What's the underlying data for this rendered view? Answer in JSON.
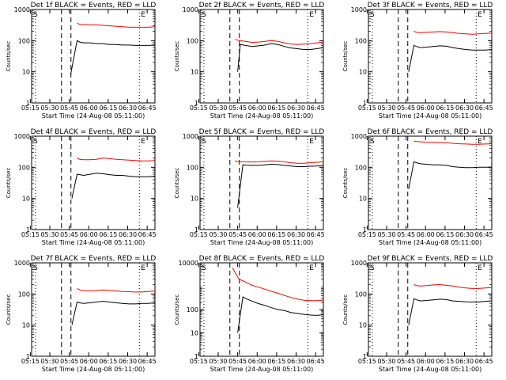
{
  "chart_data": [
    {
      "type": "line",
      "title": "Det 1f BLACK = Events, RED = LLD",
      "xlabel": "Start Time (24-Aug-08 05:11:00)",
      "ylabel": "Counts/sec",
      "xticks": [
        "05:15",
        "05:30",
        "05:45",
        "06:00",
        "06:15",
        "06:30",
        "06:45"
      ],
      "yticks": [
        "1",
        "10",
        "100",
        "1000"
      ],
      "markers": [
        "S",
        "E"
      ],
      "x_range_min": [
        5,
        60
      ],
      "y_range": [
        1,
        1000
      ],
      "series": [
        {
          "color": "#ff0000",
          "x": [
            40,
            42,
            45,
            50,
            55,
            60,
            65,
            70,
            75,
            80,
            85,
            90,
            95,
            100
          ],
          "y": [
            370,
            330,
            330,
            320,
            320,
            310,
            300,
            290,
            280,
            270,
            270,
            270,
            270,
            280
          ]
        },
        {
          "color": "#000000",
          "x": [
            35,
            40,
            42,
            45,
            50,
            55,
            60,
            65,
            70,
            75,
            80,
            85,
            90,
            95,
            100
          ],
          "y": [
            8,
            100,
            90,
            85,
            85,
            80,
            80,
            75,
            75,
            72,
            72,
            70,
            70,
            70,
            72
          ]
        }
      ]
    },
    {
      "type": "line",
      "title": "Det 2f BLACK = Events, RED = LLD",
      "xlabel": "Start Time (24-Aug-08 05:11:00)",
      "ylabel": "Counts/sec",
      "xticks": [
        "05:15",
        "05:30",
        "05:45",
        "06:00",
        "06:15",
        "06:30",
        "06:45"
      ],
      "yticks": [
        "1",
        "10",
        "100",
        "1000"
      ],
      "markers": [
        "S",
        "E"
      ],
      "x_range_min": [
        5,
        60
      ],
      "y_range": [
        1,
        1000
      ],
      "series": [
        {
          "color": "#ff0000",
          "x": [
            32,
            35,
            40,
            45,
            50,
            55,
            60,
            65,
            70,
            75,
            80,
            85,
            90,
            95,
            100
          ],
          "y": [
            110,
            100,
            95,
            88,
            90,
            95,
            100,
            95,
            85,
            78,
            75,
            78,
            80,
            85,
            90
          ]
        },
        {
          "color": "#000000",
          "x": [
            34,
            36,
            40,
            45,
            50,
            55,
            60,
            65,
            70,
            75,
            80,
            85,
            90,
            95,
            100
          ],
          "y": [
            10,
            75,
            70,
            65,
            68,
            72,
            80,
            75,
            65,
            58,
            55,
            52,
            52,
            55,
            60
          ]
        }
      ]
    },
    {
      "type": "line",
      "title": "Det 3f BLACK = Events, RED = LLD",
      "xlabel": "Start Time (24-Aug-08 05:11:00)",
      "ylabel": "Counts/sec",
      "xticks": [
        "05:15",
        "05:30",
        "05:45",
        "06:00",
        "06:15",
        "06:30",
        "06:45"
      ],
      "yticks": [
        "1",
        "10",
        "100",
        "1000"
      ],
      "markers": [
        "S",
        "E"
      ],
      "x_range_min": [
        5,
        60
      ],
      "y_range": [
        1,
        1000
      ],
      "series": [
        {
          "color": "#ff0000",
          "x": [
            40,
            42,
            45,
            50,
            55,
            60,
            65,
            70,
            75,
            80,
            85,
            90,
            95,
            100
          ],
          "y": [
            200,
            185,
            180,
            185,
            190,
            195,
            190,
            180,
            170,
            165,
            160,
            165,
            170,
            175
          ]
        },
        {
          "color": "#000000",
          "x": [
            36,
            40,
            42,
            45,
            50,
            55,
            60,
            65,
            70,
            75,
            80,
            85,
            90,
            95,
            100
          ],
          "y": [
            10,
            70,
            65,
            60,
            62,
            65,
            68,
            66,
            60,
            55,
            52,
            50,
            50,
            50,
            52
          ]
        }
      ]
    },
    {
      "type": "line",
      "title": "Det 4f BLACK = Events, RED = LLD",
      "xlabel": "Start Time (24-Aug-08 05:11:00)",
      "ylabel": "Counts/sec",
      "xticks": [
        "05:15",
        "05:30",
        "05:45",
        "06:00",
        "06:15",
        "06:30",
        "06:45"
      ],
      "yticks": [
        "1",
        "10",
        "100",
        "1000"
      ],
      "markers": [
        "S",
        "E"
      ],
      "x_range_min": [
        5,
        60
      ],
      "y_range": [
        1,
        1000
      ],
      "series": [
        {
          "color": "#ff0000",
          "x": [
            40,
            42,
            45,
            50,
            55,
            60,
            65,
            70,
            75,
            80,
            85,
            90,
            95,
            100
          ],
          "y": [
            200,
            180,
            175,
            175,
            180,
            200,
            190,
            180,
            175,
            170,
            165,
            160,
            160,
            165
          ]
        },
        {
          "color": "#000000",
          "x": [
            36,
            40,
            42,
            45,
            50,
            55,
            60,
            65,
            70,
            75,
            80,
            85,
            90,
            95,
            100
          ],
          "y": [
            10,
            60,
            58,
            55,
            60,
            65,
            62,
            58,
            55,
            55,
            52,
            50,
            50,
            50,
            52
          ]
        }
      ]
    },
    {
      "type": "line",
      "title": "Det 5f BLACK = Events, RED = LLD",
      "xlabel": "Start Time (24-Aug-08 05:11:00)",
      "ylabel": "Counts/sec",
      "xticks": [
        "05:15",
        "05:30",
        "05:45",
        "06:00",
        "06:15",
        "06:30",
        "06:45"
      ],
      "yticks": [
        "1",
        "10",
        "100",
        "1000"
      ],
      "markers": [
        "S",
        "E"
      ],
      "x_range_min": [
        5,
        60
      ],
      "y_range": [
        1,
        1000
      ],
      "series": [
        {
          "color": "#ff0000",
          "x": [
            32,
            35,
            40,
            45,
            50,
            55,
            60,
            65,
            70,
            75,
            80,
            85,
            90,
            95,
            100
          ],
          "y": [
            160,
            150,
            150,
            148,
            150,
            155,
            160,
            158,
            150,
            140,
            135,
            135,
            140,
            145,
            150
          ]
        },
        {
          "color": "#000000",
          "x": [
            34,
            38,
            40,
            45,
            50,
            55,
            60,
            65,
            70,
            75,
            80,
            85,
            90,
            95,
            100
          ],
          "y": [
            5,
            120,
            118,
            115,
            115,
            120,
            125,
            122,
            115,
            110,
            105,
            105,
            108,
            110,
            115
          ]
        }
      ]
    },
    {
      "type": "line",
      "title": "Det 6f BLACK = Events, RED = LLD",
      "xlabel": "Start Time (24-Aug-08 05:11:00)",
      "ylabel": "Counts/sec",
      "xticks": [
        "05:15",
        "05:30",
        "05:45",
        "06:00",
        "06:15",
        "06:30",
        "06:45"
      ],
      "yticks": [
        "1",
        "10",
        "100",
        "1000"
      ],
      "markers": [
        "S",
        "E"
      ],
      "x_range_min": [
        5,
        60
      ],
      "y_range": [
        1,
        1000
      ],
      "series": [
        {
          "color": "#ff0000",
          "x": [
            40,
            42,
            45,
            50,
            55,
            60,
            65,
            70,
            75,
            80,
            85,
            90,
            95,
            100
          ],
          "y": [
            700,
            680,
            660,
            640,
            630,
            620,
            610,
            590,
            570,
            560,
            550,
            550,
            560,
            570
          ]
        },
        {
          "color": "#000000",
          "x": [
            36,
            40,
            42,
            45,
            50,
            55,
            60,
            65,
            70,
            75,
            80,
            85,
            90,
            95,
            100
          ],
          "y": [
            20,
            150,
            140,
            130,
            125,
            120,
            120,
            115,
            105,
            100,
            98,
            98,
            100,
            100,
            102
          ]
        }
      ]
    },
    {
      "type": "line",
      "title": "Det 7f BLACK = Events, RED = LLD",
      "xlabel": "Start Time (24-Aug-08 05:11:00)",
      "ylabel": "Counts/sec",
      "xticks": [
        "05:15",
        "05:30",
        "05:45",
        "06:00",
        "06:15",
        "06:30",
        "06:45"
      ],
      "yticks": [
        "1",
        "10",
        "100",
        "1000"
      ],
      "markers": [
        "S",
        "E"
      ],
      "x_range_min": [
        5,
        60
      ],
      "y_range": [
        1,
        1000
      ],
      "series": [
        {
          "color": "#ff0000",
          "x": [
            40,
            42,
            45,
            50,
            55,
            60,
            65,
            70,
            75,
            80,
            85,
            90,
            95,
            100
          ],
          "y": [
            150,
            135,
            130,
            125,
            130,
            135,
            130,
            125,
            120,
            118,
            115,
            115,
            120,
            125
          ]
        },
        {
          "color": "#000000",
          "x": [
            36,
            40,
            42,
            45,
            50,
            55,
            60,
            65,
            70,
            75,
            80,
            85,
            90,
            95,
            100
          ],
          "y": [
            10,
            55,
            52,
            50,
            52,
            55,
            58,
            55,
            52,
            50,
            48,
            48,
            50,
            50,
            52
          ]
        }
      ]
    },
    {
      "type": "line",
      "title": "Det 8f BLACK = Events, RED = LLD",
      "xlabel": "Start Time (24-Aug-08 05:11:00)",
      "ylabel": "Counts/sec",
      "xticks": [
        "05:15",
        "05:30",
        "05:45",
        "06:00",
        "06:15",
        "06:30",
        "06:45"
      ],
      "yticks": [
        "1",
        "10",
        "100",
        "10000"
      ],
      "markers": [
        "S",
        "E"
      ],
      "x_range_min": [
        5,
        60
      ],
      "y_range": [
        1,
        10000
      ],
      "series": [
        {
          "color": "#ff0000",
          "x": [
            30,
            35,
            40,
            45,
            50,
            55,
            60,
            65,
            70,
            75,
            80,
            85,
            90,
            95,
            100
          ],
          "y": [
            6000,
            2000,
            1500,
            1100,
            900,
            750,
            600,
            500,
            400,
            330,
            280,
            250,
            240,
            240,
            250
          ]
        },
        {
          "color": "#000000",
          "x": [
            34,
            38,
            40,
            45,
            50,
            55,
            60,
            65,
            70,
            75,
            80,
            85,
            90,
            95,
            100
          ],
          "y": [
            10,
            350,
            300,
            230,
            180,
            150,
            120,
            100,
            90,
            75,
            68,
            62,
            58,
            56,
            60
          ]
        }
      ]
    },
    {
      "type": "line",
      "title": "Det 9f BLACK = Events, RED = LLD",
      "xlabel": "Start Time (24-Aug-08 05:11:00)",
      "ylabel": "Counts/sec",
      "xticks": [
        "05:15",
        "05:30",
        "05:45",
        "06:00",
        "06:15",
        "06:30",
        "06:45"
      ],
      "yticks": [
        "1",
        "10",
        "100",
        "1000"
      ],
      "markers": [
        "S",
        "E"
      ],
      "x_range_min": [
        5,
        60
      ],
      "y_range": [
        1,
        1000
      ],
      "series": [
        {
          "color": "#ff0000",
          "x": [
            40,
            42,
            45,
            50,
            55,
            60,
            65,
            70,
            75,
            80,
            85,
            90,
            95,
            100
          ],
          "y": [
            200,
            185,
            180,
            185,
            195,
            200,
            190,
            180,
            165,
            155,
            150,
            150,
            155,
            160
          ]
        },
        {
          "color": "#000000",
          "x": [
            36,
            40,
            42,
            45,
            50,
            55,
            60,
            65,
            70,
            75,
            80,
            85,
            90,
            95,
            100
          ],
          "y": [
            10,
            70,
            65,
            60,
            62,
            65,
            68,
            66,
            60,
            58,
            56,
            55,
            55,
            58,
            60
          ]
        }
      ]
    }
  ]
}
